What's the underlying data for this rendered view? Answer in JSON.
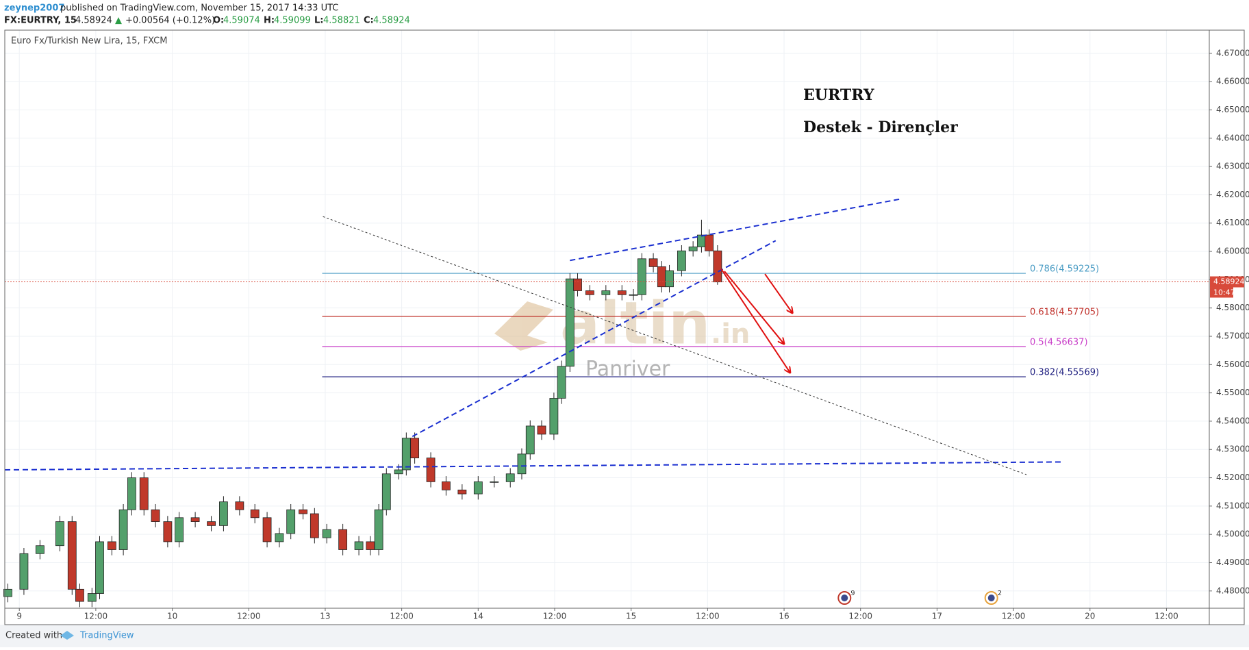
{
  "header": {
    "author": "zeynep2007",
    "published": "published on TradingView.com, November 15, 2017 14:33 UTC",
    "symbol": "FX:EURTRY, 15",
    "last": "4.58924",
    "arrow": "▲",
    "change": "+0.00564 (+0.12%)",
    "o_label": "O:",
    "o": "4.59074",
    "h_label": "H:",
    "h": "4.59099",
    "l_label": "L:",
    "l": "4.58821",
    "c_label": "C:",
    "c": "4.58924"
  },
  "footer": {
    "created": "Created with",
    "brand": "TradingView"
  },
  "chart_data": {
    "type": "candlestick",
    "title": "Euro Fx/Turkish New Lira, 15, FXCM",
    "annotation_title": "EURTRY",
    "annotation_subtitle": "Destek - Dirençler",
    "watermark": {
      "main": "altin",
      "suffix": ".in",
      "sub": "Panriver"
    },
    "x": [
      -0.15,
      0.06,
      0.27,
      0.53,
      0.69,
      0.79,
      0.95,
      1.05,
      1.21,
      1.36,
      1.47,
      1.63,
      1.78,
      1.94,
      2.09,
      2.3,
      2.51,
      2.67,
      2.88,
      3.08,
      3.24,
      3.4,
      3.55,
      3.71,
      3.86,
      4.02,
      4.23,
      4.44,
      4.59,
      4.7,
      4.8,
      4.96,
      5.06,
      5.17,
      5.38,
      5.58,
      5.79,
      6.0,
      6.21,
      6.42,
      6.57,
      6.68,
      6.83,
      6.99,
      7.09,
      7.2,
      7.3,
      7.46,
      7.67,
      7.88,
      8.03,
      8.14,
      8.29,
      8.4,
      8.5,
      8.66,
      8.81,
      8.92,
      9.02,
      9.13
    ],
    "open": [
      4.478,
      4.4806,
      4.4932,
      4.496,
      4.5045,
      4.4806,
      4.4763,
      4.4791,
      4.4974,
      4.4946,
      4.5087,
      4.52,
      4.5087,
      4.5045,
      4.4974,
      4.5059,
      4.5045,
      4.5031,
      4.5115,
      4.5087,
      4.5059,
      4.4974,
      4.5003,
      4.5087,
      4.5073,
      4.4988,
      4.5017,
      4.4946,
      4.4974,
      4.4946,
      4.5087,
      4.5214,
      4.5228,
      4.534,
      4.527,
      4.5186,
      4.5157,
      4.5143,
      4.5186,
      4.5186,
      4.5214,
      4.5284,
      4.5383,
      4.5354,
      4.5481,
      4.5594,
      4.5903,
      4.5861,
      4.5847,
      4.5861,
      4.5847,
      4.5847,
      4.5974,
      4.5946,
      4.5875,
      4.5932,
      4.6002,
      4.6016,
      4.6058,
      4.6002
    ],
    "high": [
      4.4826,
      4.4952,
      4.498,
      4.5065,
      4.5065,
      4.4826,
      4.4811,
      4.4994,
      4.4994,
      4.5107,
      4.522,
      4.522,
      4.5107,
      4.5065,
      4.5079,
      4.5079,
      4.5065,
      4.5135,
      4.5135,
      4.5107,
      4.5079,
      4.5023,
      4.5107,
      4.5107,
      4.5093,
      4.5037,
      4.5037,
      4.4994,
      4.4994,
      4.5107,
      4.5234,
      4.5248,
      4.536,
      4.536,
      4.529,
      4.5206,
      4.5177,
      4.5206,
      4.5206,
      4.5234,
      4.5304,
      4.5403,
      4.5403,
      4.5501,
      4.5614,
      4.5923,
      4.5923,
      4.5881,
      4.5881,
      4.5881,
      4.5867,
      4.5994,
      4.5994,
      4.5966,
      4.5952,
      4.6022,
      4.6036,
      4.6112,
      4.6078,
      4.6022
    ],
    "low": [
      4.476,
      4.4786,
      4.4912,
      4.494,
      4.4786,
      4.4743,
      4.4743,
      4.4771,
      4.4926,
      4.4926,
      4.5067,
      4.5067,
      4.5025,
      4.4954,
      4.4954,
      4.5025,
      4.5011,
      4.5011,
      4.5067,
      4.5039,
      4.4954,
      4.4954,
      4.4983,
      4.5053,
      4.4968,
      4.4968,
      4.4926,
      4.4926,
      4.4926,
      4.4926,
      4.5067,
      4.5194,
      4.5208,
      4.525,
      4.5166,
      4.5137,
      4.5123,
      4.5123,
      4.5166,
      4.5166,
      4.5194,
      4.5264,
      4.5334,
      4.5334,
      4.5461,
      4.5574,
      4.5841,
      4.5827,
      4.5827,
      4.5827,
      4.5827,
      4.5827,
      4.5926,
      4.5855,
      4.5855,
      4.5912,
      4.5982,
      4.5996,
      4.5982,
      4.5882
    ],
    "close": [
      4.4806,
      4.4932,
      4.496,
      4.5045,
      4.4806,
      4.4763,
      4.4791,
      4.4974,
      4.4946,
      4.5087,
      4.52,
      4.5087,
      4.5045,
      4.4974,
      4.5059,
      4.5045,
      4.5031,
      4.5115,
      4.5087,
      4.5059,
      4.4974,
      4.5003,
      4.5087,
      4.5073,
      4.4988,
      4.5017,
      4.4946,
      4.4974,
      4.4946,
      4.5087,
      4.5214,
      4.5228,
      4.534,
      4.527,
      4.5186,
      4.5157,
      4.5143,
      4.5186,
      4.5186,
      4.5214,
      4.5284,
      4.5383,
      4.5354,
      4.5481,
      4.5594,
      4.5903,
      4.5861,
      4.5847,
      4.5861,
      4.5847,
      4.5847,
      4.5974,
      4.5946,
      4.5875,
      4.5932,
      4.6002,
      4.6016,
      4.6058,
      4.6002,
      4.5892
    ],
    "up_color": "#53a06b",
    "down_color": "#c0392b",
    "xlim": [
      -0.19,
      15.56
    ],
    "xticks": [
      {
        "value": 0,
        "label": "9"
      },
      {
        "value": 1,
        "label": "12:00"
      },
      {
        "value": 2,
        "label": "10"
      },
      {
        "value": 3,
        "label": "12:00"
      },
      {
        "value": 4,
        "label": "13"
      },
      {
        "value": 5,
        "label": "12:00"
      },
      {
        "value": 6,
        "label": "14"
      },
      {
        "value": 7,
        "label": "12:00"
      },
      {
        "value": 8,
        "label": "15"
      },
      {
        "value": 9,
        "label": "12:00"
      },
      {
        "value": 10,
        "label": "16"
      },
      {
        "value": 11,
        "label": "12:00"
      },
      {
        "value": 12,
        "label": "17"
      },
      {
        "value": 13,
        "label": "12:00"
      },
      {
        "value": 14,
        "label": "20"
      },
      {
        "value": 15,
        "label": "12:00"
      }
    ],
    "ylim": [
      4.4739,
      4.6782
    ],
    "yticks": [
      {
        "value": 4.48,
        "label": "4.48000"
      },
      {
        "value": 4.49,
        "label": "4.49000"
      },
      {
        "value": 4.5,
        "label": "4.50000"
      },
      {
        "value": 4.51,
        "label": "4.51000"
      },
      {
        "value": 4.52,
        "label": "4.52000"
      },
      {
        "value": 4.53,
        "label": "4.53000"
      },
      {
        "value": 4.54,
        "label": "4.54000"
      },
      {
        "value": 4.55,
        "label": "4.55000"
      },
      {
        "value": 4.56,
        "label": "4.56000"
      },
      {
        "value": 4.57,
        "label": "4.57000"
      },
      {
        "value": 4.58,
        "label": "4.58000"
      },
      {
        "value": 4.59,
        "label": "4.59000"
      },
      {
        "value": 4.6,
        "label": "4.60000"
      },
      {
        "value": 4.61,
        "label": "4.61000"
      },
      {
        "value": 4.62,
        "label": "4.62000"
      },
      {
        "value": 4.63,
        "label": "4.63000"
      },
      {
        "value": 4.64,
        "label": "4.64000"
      },
      {
        "value": 4.65,
        "label": "4.65000"
      },
      {
        "value": 4.66,
        "label": "4.66000"
      },
      {
        "value": 4.67,
        "label": "4.67000"
      }
    ],
    "grid": true,
    "price_line": {
      "value": 4.58924,
      "countdown": "10:47",
      "color": "#d84a3a"
    },
    "fib_levels": [
      {
        "label": "0.786(4.59225)",
        "value": 4.59225,
        "color": "#4a9cc4",
        "x": [
          3.96,
          13.16
        ]
      },
      {
        "label": "0.618(4.57705)",
        "value": 4.57705,
        "color": "#c0302a",
        "x": [
          3.96,
          13.16
        ]
      },
      {
        "label": "0.5(4.56637)",
        "value": 4.56637,
        "color": "#c83cc8",
        "x": [
          3.96,
          13.16
        ]
      },
      {
        "label": "0.382(4.55569)",
        "value": 4.55569,
        "color": "#202080",
        "x": [
          3.96,
          13.16
        ]
      }
    ],
    "trendlines": [
      {
        "x": [
          -0.19,
          13.64
        ],
        "y": [
          4.5228,
          4.5256
        ],
        "color": "#1a2fd0",
        "style": "dashed"
      },
      {
        "x": [
          5.14,
          9.89
        ],
        "y": [
          4.5346,
          4.6038
        ],
        "color": "#1a2fd0",
        "style": "dashed"
      },
      {
        "x": [
          7.2,
          11.52
        ],
        "y": [
          4.5968,
          4.6185
        ],
        "color": "#1a2fd0",
        "style": "dashed"
      },
      {
        "x": [
          3.97,
          13.17
        ],
        "y": [
          4.6123,
          4.5211
        ],
        "color": "#333333",
        "style": "dotted"
      }
    ],
    "arrows": [
      {
        "x": [
          9.18,
          10.08
        ],
        "y": [
          4.5937,
          4.5571
        ],
        "color": "#e01010"
      },
      {
        "x": [
          9.22,
          10.0
        ],
        "y": [
          4.593,
          4.5673
        ],
        "color": "#e01010"
      },
      {
        "x": [
          9.75,
          10.11
        ],
        "y": [
          4.592,
          4.5782
        ],
        "color": "#e01010"
      }
    ],
    "events": [
      {
        "x": 10.79,
        "count": 9
      },
      {
        "x": 12.71,
        "count": 2
      }
    ]
  }
}
